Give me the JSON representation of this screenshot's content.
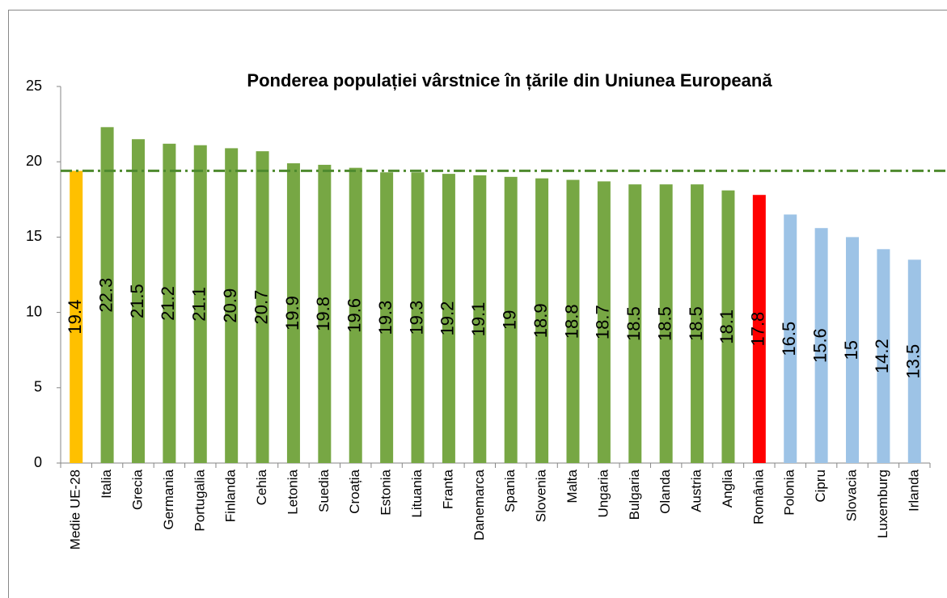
{
  "chart_data": {
    "type": "bar",
    "title": "Ponderea populației vârstnice în țările  din Uniunea Europeană",
    "categories": [
      "Medie UE-28",
      "Italia",
      "Grecia",
      "Germania",
      "Portugalia",
      "Finlanda",
      "Cehia",
      "Letonia",
      "Suedia",
      "Croația",
      "Estonia",
      "Lituania",
      "Franta",
      "Danemarca",
      "Spania",
      "Slovenia",
      "Malta",
      "Ungaria",
      "Bulgaria",
      "Olanda",
      "Austria",
      "Anglia",
      "România",
      "Polonia",
      "Cipru",
      "Slovacia",
      "Luxemburg",
      "Irlanda"
    ],
    "values": [
      19.4,
      22.3,
      21.5,
      21.2,
      21.1,
      20.9,
      20.7,
      19.9,
      19.8,
      19.6,
      19.3,
      19.3,
      19.2,
      19.1,
      19,
      18.9,
      18.8,
      18.7,
      18.5,
      18.5,
      18.5,
      18.1,
      17.8,
      16.5,
      15.6,
      15,
      14.2,
      13.5
    ],
    "colors": [
      "#ffc000",
      "#77a744",
      "#77a744",
      "#77a744",
      "#77a744",
      "#77a744",
      "#77a744",
      "#77a744",
      "#77a744",
      "#77a744",
      "#77a744",
      "#77a744",
      "#77a744",
      "#77a744",
      "#77a744",
      "#77a744",
      "#77a744",
      "#77a744",
      "#77a744",
      "#77a744",
      "#77a744",
      "#77a744",
      "#ff0000",
      "#9dc3e6",
      "#9dc3e6",
      "#9dc3e6",
      "#9dc3e6",
      "#9dc3e6"
    ],
    "reference_line_color": "#4e8a2e",
    "ylim": [
      0,
      25
    ],
    "yticks": [
      0,
      5,
      10,
      15,
      20,
      25
    ]
  }
}
